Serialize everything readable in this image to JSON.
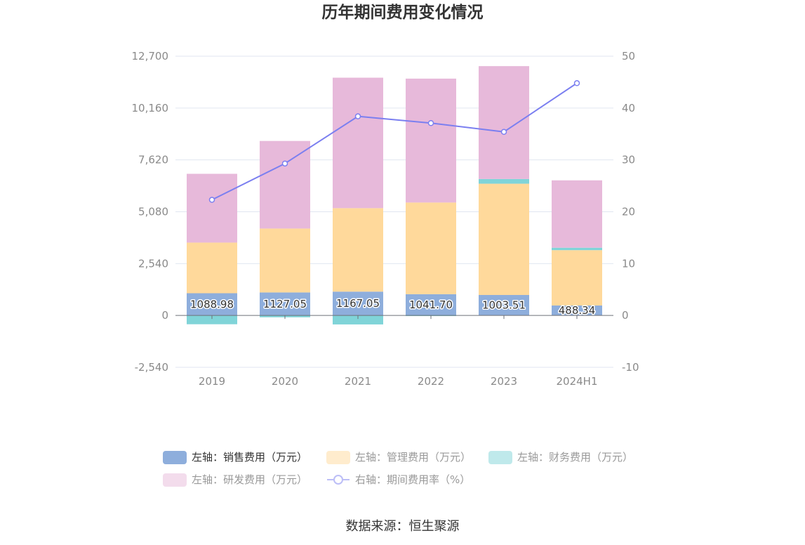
{
  "source": "数据来源：恒生聚源",
  "colors": {
    "grid": "#e0e6f1",
    "axis": "#6e7079"
  },
  "chart_data": {
    "type": "bar",
    "stacked": true,
    "title": "历年期间费用变化情况",
    "categories": [
      "2019",
      "2020",
      "2021",
      "2022",
      "2023",
      "2024H1"
    ],
    "y_left": {
      "ylim": [
        -2540,
        12700
      ],
      "ticks": [
        "12,700",
        "10,160",
        "7,620",
        "5,080",
        "2,540",
        "0",
        "-2,540"
      ]
    },
    "y_right": {
      "ylim": [
        -10,
        50
      ],
      "ticks": [
        "50",
        "40",
        "30",
        "20",
        "10",
        "0",
        "-10"
      ]
    },
    "grid": true,
    "legend_position": "bottom",
    "series": [
      {
        "name": "左轴：销售费用（万元）",
        "type": "bar",
        "axis": "left",
        "color": "#8eaedc",
        "values": [
          1088.98,
          1127.05,
          1167.05,
          1041.7,
          1003.51,
          488.34
        ],
        "labels": [
          "1088.98",
          "1127.05",
          "1167.05",
          "1041.70",
          "1003.51",
          "488.34"
        ]
      },
      {
        "name": "左轴：管理费用（万元）",
        "type": "bar",
        "axis": "left",
        "color": "#ffd99b",
        "values": [
          2480,
          3130,
          4090,
          4490,
          5450,
          2710
        ]
      },
      {
        "name": "左轴：财务费用（万元）",
        "type": "bar",
        "axis": "left",
        "color": "#80d4d8",
        "values": [
          -430,
          -90,
          -440,
          -30,
          230,
          120
        ]
      },
      {
        "name": "左轴：研发费用（万元）",
        "type": "bar",
        "axis": "left",
        "color": "#e7b9da",
        "values": [
          3370,
          4290,
          6390,
          6070,
          5530,
          3300
        ]
      },
      {
        "name": "右轴：期间费用率（%）",
        "type": "line",
        "axis": "right",
        "color": "#7b7ff0",
        "values": [
          22.3,
          29.3,
          38.4,
          37.1,
          35.4,
          44.8
        ]
      }
    ]
  }
}
